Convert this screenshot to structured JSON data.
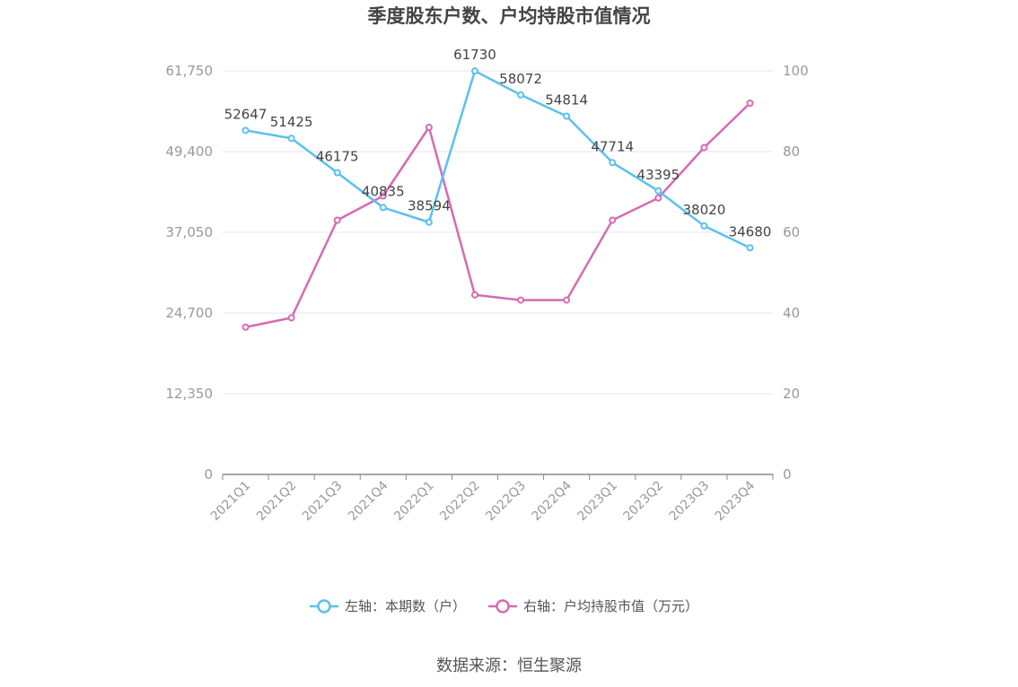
{
  "chart_data": {
    "type": "line",
    "title": "季度股东户数、户均持股市值情况",
    "categories": [
      "2021Q1",
      "2021Q2",
      "2021Q3",
      "2021Q4",
      "2022Q1",
      "2022Q2",
      "2022Q3",
      "2022Q4",
      "2023Q1",
      "2023Q2",
      "2023Q3",
      "2023Q4"
    ],
    "left_axis": {
      "ticks": [
        "0",
        "12,350",
        "24,700",
        "37,050",
        "49,400",
        "61,750"
      ],
      "min": 0,
      "max": 61750
    },
    "right_axis": {
      "ticks": [
        "0",
        "20",
        "40",
        "60",
        "80",
        "100"
      ],
      "min": 0,
      "max": 100
    },
    "series": [
      {
        "name": "左轴：本期数（户）",
        "axis": "left",
        "color": "#5bc0f0",
        "values": [
          52647,
          51425,
          46175,
          40835,
          38594,
          61730,
          58072,
          54814,
          47714,
          43395,
          38020,
          34680
        ],
        "labels": [
          "52647",
          "51425",
          "46175",
          "40835",
          "38594",
          "61730",
          "58072",
          "54814",
          "47714",
          "43395",
          "38020",
          "34680"
        ]
      },
      {
        "name": "右轴：户均持股市值（万元）",
        "axis": "right",
        "color": "#d66bb1",
        "values": [
          36.5,
          38.8,
          63.0,
          69.0,
          86.0,
          44.5,
          43.2,
          43.2,
          63.0,
          68.5,
          81.0,
          92.0
        ]
      }
    ],
    "legend_position": "bottom",
    "grid": true
  },
  "source_text": "数据来源：恒生聚源"
}
